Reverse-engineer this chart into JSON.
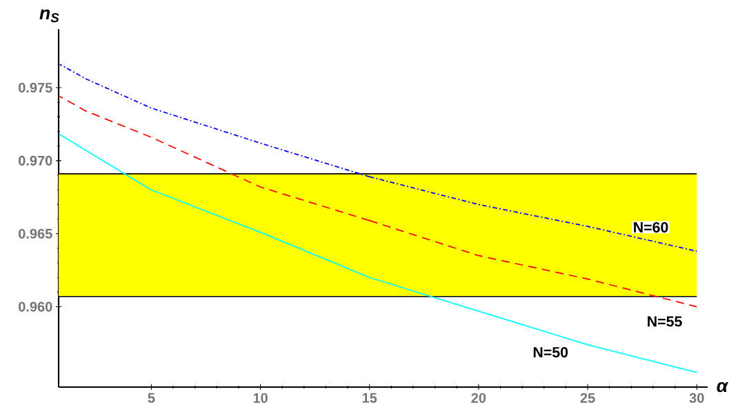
{
  "chart_data": {
    "type": "line",
    "xlabel": "α",
    "ylabel": "n$_{S}$",
    "x": [
      0.8,
      2,
      5,
      10,
      15,
      20,
      25,
      30
    ],
    "series": [
      {
        "name": "N=50",
        "color": "#00ffff",
        "line_style": "solid",
        "values": [
          0.9718,
          0.9707,
          0.968,
          0.9651,
          0.962,
          0.9597,
          0.9574,
          0.9555
        ]
      },
      {
        "name": "N=55",
        "color": "#ff0000",
        "line_style": "dashed",
        "values": [
          0.9744,
          0.9734,
          0.9716,
          0.9682,
          0.9659,
          0.9635,
          0.9619,
          0.96
        ]
      },
      {
        "name": "N=60",
        "color": "#0000ff",
        "line_style": "dashdot",
        "values": [
          0.9766,
          0.9756,
          0.9736,
          0.9712,
          0.9689,
          0.967,
          0.9655,
          0.9638
        ]
      }
    ],
    "bands": [
      {
        "axis": "y",
        "from": 0.9607,
        "to": 0.9691,
        "color": "#ffff00"
      }
    ],
    "ref_lines": [
      {
        "axis": "y",
        "value": 0.9607,
        "color": "#000000"
      },
      {
        "axis": "y",
        "value": 0.9691,
        "color": "#000000"
      }
    ],
    "xlim": [
      0.75,
      30.5
    ],
    "ylim": [
      0.9545,
      0.979
    ],
    "xticks": [
      5,
      10,
      15,
      20,
      25,
      30
    ],
    "yticks": [
      {
        "value": 0.96,
        "label": "0.960"
      },
      {
        "value": 0.965,
        "label": "0.965"
      },
      {
        "value": 0.97,
        "label": "0.970"
      },
      {
        "value": 0.975,
        "label": "0.975"
      }
    ]
  }
}
